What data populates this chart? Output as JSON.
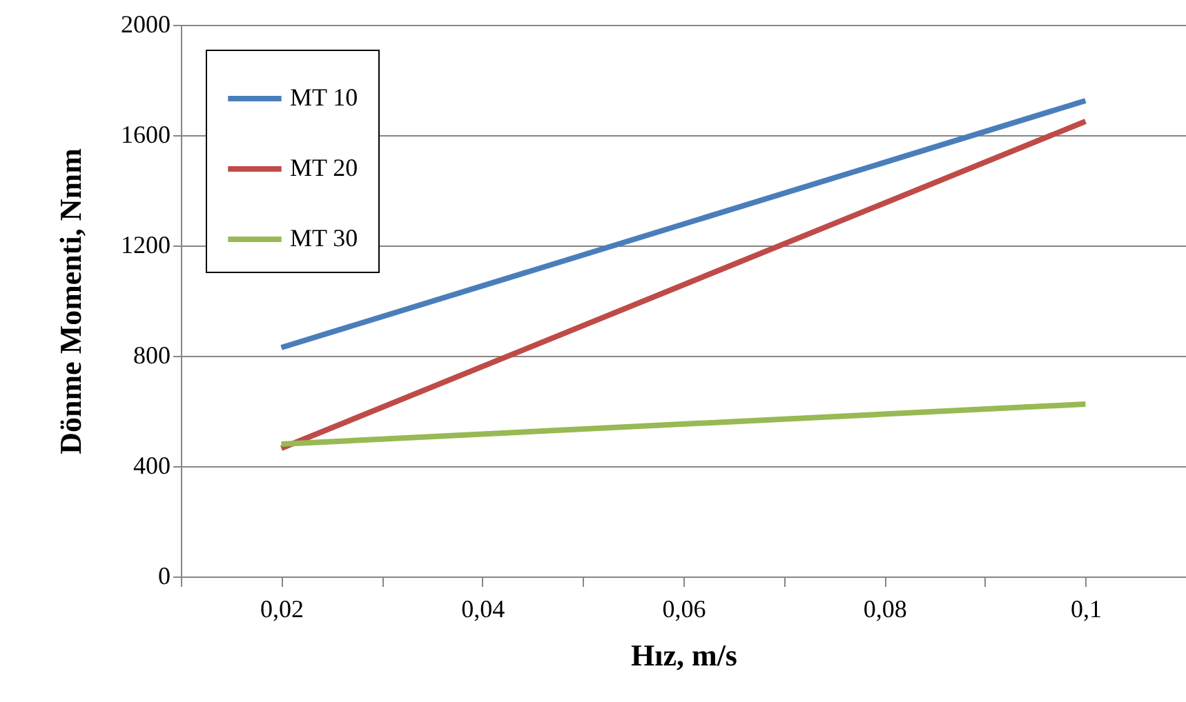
{
  "chart_data": {
    "type": "line",
    "xlabel": "Hız, m/s",
    "ylabel": "Dönme Momenti, Nmm",
    "xlim": [
      0.01,
      0.11
    ],
    "xticks": [
      {
        "value": 0.01,
        "label": null
      },
      {
        "value": 0.02,
        "label": "0,02"
      },
      {
        "value": 0.03,
        "label": null
      },
      {
        "value": 0.04,
        "label": "0,04"
      },
      {
        "value": 0.05,
        "label": null
      },
      {
        "value": 0.06,
        "label": "0,06"
      },
      {
        "value": 0.07,
        "label": null
      },
      {
        "value": 0.08,
        "label": "0,08"
      },
      {
        "value": 0.09,
        "label": null
      },
      {
        "value": 0.1,
        "label": "0,1"
      },
      {
        "value": 0.11,
        "label": null
      }
    ],
    "x": [
      0.02,
      0.1
    ],
    "ylim": [
      0,
      2000
    ],
    "yticks": [
      0,
      400,
      800,
      1200,
      1600,
      2000
    ],
    "grid": "y",
    "legend": "top left",
    "series": [
      {
        "name": "MT 10",
        "color": "#4a7ebb",
        "values": [
          830,
          1725
        ]
      },
      {
        "name": "MT 20",
        "color": "#be4b48",
        "values": [
          465,
          1650
        ]
      },
      {
        "name": "MT 30",
        "color": "#98b954",
        "values": [
          480,
          625
        ]
      }
    ]
  }
}
